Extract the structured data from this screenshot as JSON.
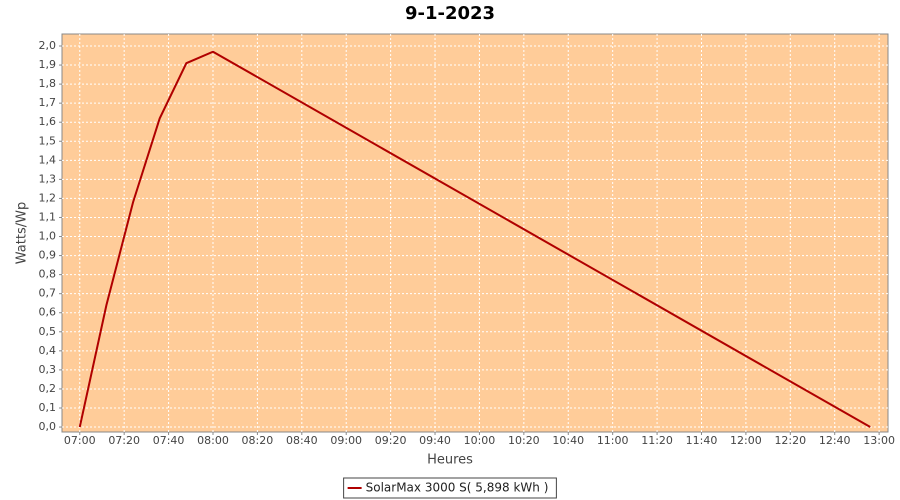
{
  "chart_data": {
    "type": "line",
    "title": "9-1-2023",
    "x_label": "Heures",
    "y_label": "Watts/Wp",
    "series": [
      {
        "name": "SolarMax 3000 S( 5,898 kWh )",
        "color": "#b00000",
        "x": [
          420,
          432,
          444,
          456,
          468,
          480,
          776
        ],
        "values": [
          0,
          0.64,
          1.18,
          1.62,
          1.91,
          1.97,
          0
        ]
      }
    ],
    "xlim": [
      412,
      784
    ],
    "xticks": [
      {
        "value": 420,
        "label": "07:00"
      },
      {
        "value": 440,
        "label": "07:20"
      },
      {
        "value": 460,
        "label": "07:40"
      },
      {
        "value": 480,
        "label": "08:00"
      },
      {
        "value": 500,
        "label": "08:20"
      },
      {
        "value": 520,
        "label": "08:40"
      },
      {
        "value": 540,
        "label": "09:00"
      },
      {
        "value": 560,
        "label": "09:20"
      },
      {
        "value": 580,
        "label": "09:40"
      },
      {
        "value": 600,
        "label": "10:00"
      },
      {
        "value": 620,
        "label": "10:20"
      },
      {
        "value": 640,
        "label": "10:40"
      },
      {
        "value": 660,
        "label": "11:00"
      },
      {
        "value": 680,
        "label": "11:20"
      },
      {
        "value": 700,
        "label": "11:40"
      },
      {
        "value": 720,
        "label": "12:00"
      },
      {
        "value": 740,
        "label": "12:20"
      },
      {
        "value": 760,
        "label": "12:40"
      },
      {
        "value": 780,
        "label": "13:00"
      }
    ],
    "ylim": [
      -0.026,
      2.063
    ],
    "yticks": [
      {
        "value": 0,
        "label": "0,0"
      },
      {
        "value": 0.1,
        "label": "0,1"
      },
      {
        "value": 0.2,
        "label": "0,2"
      },
      {
        "value": 0.3,
        "label": "0,3"
      },
      {
        "value": 0.4,
        "label": "0,4"
      },
      {
        "value": 0.5,
        "label": "0,5"
      },
      {
        "value": 0.6,
        "label": "0,6"
      },
      {
        "value": 0.7,
        "label": "0,7"
      },
      {
        "value": 0.8,
        "label": "0,8"
      },
      {
        "value": 0.9,
        "label": "0,9"
      },
      {
        "value": 1.0,
        "label": "1,0"
      },
      {
        "value": 1.1,
        "label": "1,1"
      },
      {
        "value": 1.2,
        "label": "1,2"
      },
      {
        "value": 1.3,
        "label": "1,3"
      },
      {
        "value": 1.4,
        "label": "1,4"
      },
      {
        "value": 1.5,
        "label": "1,5"
      },
      {
        "value": 1.6,
        "label": "1,6"
      },
      {
        "value": 1.7,
        "label": "1,7"
      },
      {
        "value": 1.8,
        "label": "1,8"
      },
      {
        "value": 1.9,
        "label": "1,9"
      },
      {
        "value": 2.0,
        "label": "2,0"
      }
    ],
    "grid": true,
    "background": "#ffcc99",
    "legend": "bottom"
  }
}
